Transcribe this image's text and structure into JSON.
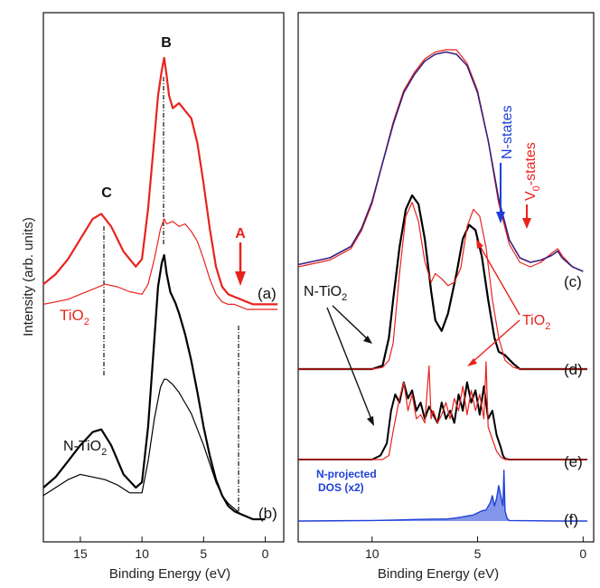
{
  "y_axis_label": "Intensity (arb. units)",
  "chart_data": [
    {
      "type": "line",
      "panel": "left",
      "xlabel": "Binding Energy (eV)",
      "ylabel": "Intensity (arb. units)",
      "xlim": [
        18,
        -1.5
      ],
      "x_reversed": true,
      "xticks": [
        15,
        10,
        5,
        0
      ],
      "peak_labels": [
        {
          "text": "C",
          "x": 13.3
        },
        {
          "text": "B",
          "x": 8.2
        },
        {
          "text": "A",
          "x": 1.5
        }
      ],
      "subplots": [
        {
          "label": "(a)",
          "sample_label": "TiO",
          "sample_sub": "2",
          "series": [
            {
              "name": "TiO2 (thick)",
              "color": "#e8231e",
              "width": 2.2,
              "x": [
                18,
                17,
                16,
                15,
                14,
                13.3,
                12.5,
                11.5,
                10.5,
                10,
                9.5,
                9,
                8.7,
                8.4,
                8.2,
                8.0,
                7.8,
                7.5,
                7,
                6.5,
                6,
                5.5,
                5,
                4.5,
                4,
                3.5,
                3,
                2.5,
                2,
                1.5,
                1,
                0,
                -1
              ],
              "y": [
                0.1,
                0.14,
                0.2,
                0.28,
                0.36,
                0.38,
                0.33,
                0.23,
                0.17,
                0.2,
                0.4,
                0.68,
                0.85,
                0.95,
                1.0,
                0.93,
                0.85,
                0.8,
                0.82,
                0.79,
                0.76,
                0.66,
                0.5,
                0.32,
                0.17,
                0.09,
                0.06,
                0.05,
                0.04,
                0.03,
                0.02,
                0.02,
                0.02
              ]
            },
            {
              "name": "TiO2 (thin)",
              "color": "#e8231e",
              "width": 1.2,
              "x": [
                18,
                17,
                16,
                15,
                14,
                13,
                12,
                11,
                10,
                9.5,
                9,
                8.5,
                8.2,
                8,
                7.5,
                7,
                6.5,
                6,
                5.5,
                5,
                4.5,
                4,
                3.5,
                3,
                2.5,
                2,
                1.5,
                1,
                0,
                -1
              ],
              "y": [
                0.02,
                0.03,
                0.04,
                0.06,
                0.08,
                0.1,
                0.09,
                0.07,
                0.06,
                0.1,
                0.2,
                0.32,
                0.36,
                0.34,
                0.35,
                0.33,
                0.34,
                0.31,
                0.27,
                0.2,
                0.12,
                0.06,
                0.03,
                0.02,
                0.02,
                0.01,
                0.0,
                0.0,
                0.0,
                0.0
              ]
            }
          ]
        },
        {
          "label": "(b)",
          "sample_label": "N-TiO",
          "sample_sub": "2",
          "series": [
            {
              "name": "N-TiO2 (thick)",
              "color": "#000000",
              "width": 2.2,
              "x": [
                18,
                17,
                16,
                15,
                14,
                13.3,
                12.5,
                11.5,
                10.5,
                10,
                9.5,
                9,
                8.7,
                8.4,
                8.2,
                8.0,
                7.7,
                7.3,
                7,
                6.5,
                6,
                5.5,
                5,
                4.5,
                4,
                3.5,
                3,
                2.5,
                2,
                1.5,
                1,
                0.5,
                0
              ],
              "y": [
                0.12,
                0.16,
                0.22,
                0.28,
                0.33,
                0.34,
                0.28,
                0.17,
                0.12,
                0.14,
                0.35,
                0.68,
                0.88,
                0.97,
                1.0,
                0.93,
                0.86,
                0.82,
                0.78,
                0.7,
                0.6,
                0.48,
                0.35,
                0.24,
                0.15,
                0.09,
                0.05,
                0.03,
                0.02,
                0.01,
                0.0,
                0.0,
                0.0
              ]
            },
            {
              "name": "N-TiO2 (thin)",
              "color": "#000000",
              "width": 1.2,
              "x": [
                18,
                17,
                16,
                15,
                14,
                13,
                12,
                11,
                10,
                9.5,
                9,
                8.5,
                8.2,
                8,
                7.5,
                7,
                6.5,
                6,
                5.5,
                5,
                4.5,
                4,
                3.5,
                3,
                2.5,
                2,
                1.5,
                1,
                0.5,
                0
              ],
              "y": [
                0.09,
                0.12,
                0.15,
                0.17,
                0.16,
                0.15,
                0.13,
                0.1,
                0.1,
                0.22,
                0.38,
                0.5,
                0.53,
                0.53,
                0.51,
                0.48,
                0.44,
                0.4,
                0.34,
                0.28,
                0.21,
                0.14,
                0.09,
                0.06,
                0.04,
                0.02,
                0.01,
                0.0,
                0.0,
                0.0
              ]
            }
          ]
        }
      ]
    },
    {
      "type": "line",
      "panel": "right",
      "xlabel": "Binding Energy (eV)",
      "xlim": [
        13.5,
        -0.5
      ],
      "x_reversed": true,
      "xticks": [
        10,
        5,
        0
      ],
      "annotations": [
        {
          "text": "N-states",
          "color": "#1f3fd8"
        },
        {
          "text": "V",
          "sub": "0",
          "suffix": "-states",
          "color": "#e8231e"
        },
        {
          "text": "N-TiO",
          "sub": "2",
          "color": "#111111"
        },
        {
          "text": "TiO",
          "sub": "2",
          "color": "#e8231e"
        },
        {
          "text": "N-projected",
          "color": "#1f3fd8"
        },
        {
          "text": "DOS (x2)",
          "color": "#1f3fd8"
        }
      ],
      "subplots": [
        {
          "label": "(c)",
          "series": [
            {
              "name": "TiO2 exp",
              "color": "#e8231e",
              "width": 1.2,
              "x": [
                13.5,
                13,
                12,
                11,
                10.5,
                10,
                9.5,
                9,
                8.5,
                8,
                7.5,
                7,
                6.5,
                6,
                5.5,
                5,
                4.5,
                4,
                3.5,
                3,
                2.5,
                2,
                1.5,
                1.2,
                1,
                0.5,
                0
              ],
              "y": [
                0.02,
                0.03,
                0.05,
                0.1,
                0.18,
                0.3,
                0.48,
                0.66,
                0.8,
                0.88,
                0.94,
                0.97,
                0.98,
                0.98,
                0.92,
                0.8,
                0.58,
                0.3,
                0.12,
                0.04,
                0.02,
                0.04,
                0.08,
                0.1,
                0.07,
                0.02,
                0.0
              ]
            },
            {
              "name": "N-TiO2 exp",
              "color": "#3b1d7a",
              "width": 1.6,
              "x": [
                13.5,
                13,
                12,
                11,
                10.5,
                10,
                9.5,
                9,
                8.5,
                8,
                7.5,
                7,
                6.5,
                6,
                5.5,
                5,
                4.5,
                4,
                3.5,
                3,
                2.5,
                2,
                1.5,
                1.2,
                1,
                0.5,
                0
              ],
              "y": [
                0.03,
                0.04,
                0.06,
                0.11,
                0.19,
                0.31,
                0.48,
                0.65,
                0.79,
                0.87,
                0.93,
                0.96,
                0.97,
                0.96,
                0.91,
                0.79,
                0.58,
                0.32,
                0.14,
                0.06,
                0.04,
                0.05,
                0.07,
                0.09,
                0.06,
                0.02,
                0.0
              ]
            }
          ]
        },
        {
          "label": "(d)",
          "series": [
            {
              "name": "N-TiO2 calc",
              "color": "#000000",
              "width": 2.2,
              "x": [
                13.5,
                11,
                10,
                9.5,
                9.2,
                9,
                8.7,
                8.4,
                8.1,
                7.8,
                7.5,
                7.2,
                7,
                6.7,
                6.4,
                6,
                5.7,
                5.4,
                5.1,
                4.8,
                4.5,
                4.2,
                4,
                3.7,
                3.3,
                3,
                1,
                -0.2
              ],
              "y": [
                0,
                0,
                0,
                0.02,
                0.18,
                0.4,
                0.7,
                0.92,
                1.0,
                0.95,
                0.75,
                0.45,
                0.28,
                0.22,
                0.32,
                0.55,
                0.75,
                0.83,
                0.8,
                0.65,
                0.4,
                0.18,
                0.1,
                0.08,
                0.03,
                0.0,
                0,
                0
              ]
            },
            {
              "name": "TiO2 calc",
              "color": "#e8231e",
              "width": 1.2,
              "x": [
                13.5,
                11,
                10,
                9.5,
                9.2,
                9,
                8.7,
                8.4,
                8.1,
                7.8,
                7.5,
                7.2,
                7,
                6.7,
                6.4,
                6.1,
                5.8,
                5.5,
                5.2,
                4.9,
                4.6,
                4.3,
                4.0,
                3.7,
                3.3,
                3,
                1,
                -0.2
              ],
              "y": [
                0,
                0,
                0,
                0.01,
                0.05,
                0.15,
                0.55,
                0.88,
                0.96,
                0.85,
                0.62,
                0.5,
                0.55,
                0.52,
                0.48,
                0.5,
                0.58,
                0.82,
                0.92,
                0.88,
                0.7,
                0.4,
                0.18,
                0.05,
                0.01,
                0.0,
                0,
                0
              ]
            }
          ]
        },
        {
          "label": "(e)",
          "series": [
            {
              "name": "N-TiO2 DOS",
              "color": "#000000",
              "width": 2.0,
              "x": [
                13.5,
                10,
                9.6,
                9.3,
                9.1,
                8.9,
                8.7,
                8.5,
                8.3,
                8.1,
                7.9,
                7.7,
                7.5,
                7.3,
                7.1,
                6.9,
                6.7,
                6.5,
                6.3,
                6.1,
                5.9,
                5.7,
                5.5,
                5.3,
                5.1,
                4.9,
                4.7,
                4.5,
                4.3,
                4.1,
                3.9,
                3.8,
                3.7,
                3.5,
                1,
                -0.2
              ],
              "y": [
                0,
                0,
                0.05,
                0.2,
                0.6,
                0.8,
                0.7,
                0.95,
                0.75,
                0.85,
                0.6,
                0.7,
                0.5,
                0.65,
                0.55,
                0.45,
                0.7,
                0.5,
                0.6,
                0.45,
                0.8,
                0.6,
                0.95,
                0.7,
                0.85,
                0.55,
                0.9,
                0.5,
                0.6,
                0.3,
                0.15,
                0.05,
                0.01,
                0,
                0,
                0
              ]
            },
            {
              "name": "TiO2 DOS",
              "color": "#e8231e",
              "width": 1.2,
              "x": [
                13.5,
                10,
                9.5,
                9.2,
                9.0,
                8.7,
                8.5,
                8.3,
                8.1,
                7.9,
                7.7,
                7.5,
                7.3,
                7.2,
                7.1,
                6.9,
                6.7,
                6.5,
                6.3,
                6.1,
                5.9,
                5.7,
                5.5,
                5.3,
                5.1,
                4.9,
                4.7,
                4.6,
                4.5,
                4.3,
                4.1,
                3.9,
                3.7,
                1,
                -0.2
              ],
              "y": [
                0,
                0,
                0,
                0.05,
                0.35,
                0.75,
                0.95,
                0.6,
                0.8,
                0.5,
                0.55,
                0.45,
                1.15,
                0.5,
                0.6,
                0.45,
                0.55,
                0.7,
                0.5,
                0.75,
                0.6,
                0.9,
                0.55,
                0.85,
                0.6,
                0.8,
                0.5,
                1.2,
                0.4,
                0.25,
                0.1,
                0.03,
                0,
                0,
                0
              ]
            }
          ]
        },
        {
          "label": "(f)",
          "series": [
            {
              "name": "N-projected DOS (x2)",
              "color": "#1f3fd8",
              "width": 1.4,
              "fill": true,
              "x": [
                13.5,
                10,
                9,
                8,
                7,
                6.5,
                6,
                5.5,
                5.2,
                5,
                4.8,
                4.6,
                4.4,
                4.3,
                4.2,
                4.1,
                4.0,
                3.9,
                3.8,
                3.75,
                3.7,
                3.6,
                3.5,
                1,
                -0.2
              ],
              "y": [
                0,
                0.01,
                0.02,
                0.03,
                0.04,
                0.04,
                0.06,
                0.1,
                0.12,
                0.16,
                0.2,
                0.22,
                0.36,
                0.5,
                0.3,
                0.45,
                0.7,
                0.5,
                0.3,
                1.0,
                0.2,
                0.05,
                0.01,
                0,
                0
              ]
            }
          ]
        }
      ]
    }
  ]
}
